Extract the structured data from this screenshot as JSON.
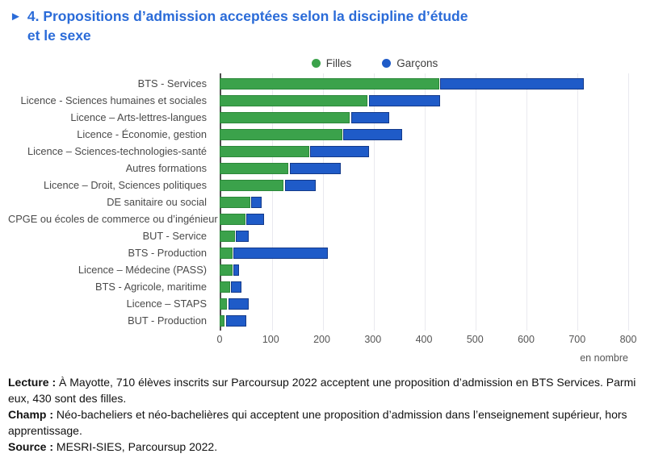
{
  "title": {
    "marker": "►",
    "line1": "4. Propositions d’admission acceptées selon la discipline d’étude",
    "line2": "et le sexe",
    "color": "#2a6bd8"
  },
  "legend": {
    "items": [
      {
        "label": "Filles",
        "color": "#3ba24b"
      },
      {
        "label": "Garçons",
        "color": "#1f5bc8"
      }
    ]
  },
  "chart_data": {
    "type": "bar",
    "orientation": "horizontal",
    "stacked": true,
    "categories": [
      "BTS - Services",
      "Licence - Sciences humaines et sociales",
      "Licence – Arts-lettres-langues",
      "Licence - Économie, gestion",
      "Licence – Sciences-technologies-santé",
      "Autres formations",
      "Licence – Droit, Sciences politiques",
      "DE sanitaire ou social",
      "CPGE ou écoles de commerce ou d’ingénieur",
      "BUT - Service",
      "BTS - Production",
      "Licence – Médecine (PASS)",
      "BTS - Agricole, maritime",
      "Licence – STAPS",
      "BUT - Production"
    ],
    "series": [
      {
        "name": "Filles",
        "color": "#3ba24b",
        "border": "#2c883a",
        "values": [
          430,
          290,
          255,
          240,
          175,
          135,
          125,
          60,
          50,
          30,
          25,
          25,
          20,
          15,
          10
        ]
      },
      {
        "name": "Garçons",
        "color": "#1f5bc8",
        "border": "#143a8a",
        "values": [
          280,
          140,
          75,
          115,
          115,
          100,
          60,
          20,
          35,
          25,
          185,
          10,
          20,
          40,
          40
        ]
      }
    ],
    "xlim": [
      0,
      800
    ],
    "xticks": [
      0,
      100,
      200,
      300,
      400,
      500,
      600,
      700,
      800
    ],
    "x_unit_label": "en nombre",
    "grid": true,
    "legend_position": "top"
  },
  "footer": [
    {
      "label": "Lecture :",
      "text": " À Mayotte, 710 élèves inscrits sur Parcoursup 2022 acceptent une proposition d’admission en BTS Services. Parmi eux, 430 sont des filles."
    },
    {
      "label": "Champ :",
      "text": " Néo-bacheliers et néo-bachelières qui acceptent une proposition d’admission dans l’enseignement supérieur, hors apprentissage."
    },
    {
      "label": "Source :",
      "text": " MESRI-SIES, Parcoursup 2022."
    }
  ]
}
